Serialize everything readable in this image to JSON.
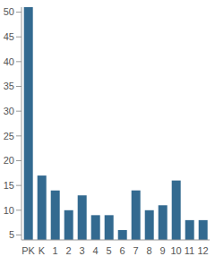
{
  "chart_data": {
    "type": "bar",
    "categories": [
      "PK",
      "K",
      "1",
      "2",
      "3",
      "4",
      "5",
      "6",
      "7",
      "8",
      "9",
      "10",
      "11",
      "12"
    ],
    "values": [
      51,
      17,
      14,
      10,
      13,
      9,
      9,
      6,
      14,
      10,
      11,
      16,
      8,
      8
    ],
    "color": "#336a90",
    "ylim": [
      4,
      51
    ],
    "yticks": [
      5,
      10,
      15,
      20,
      25,
      30,
      35,
      40,
      45,
      50
    ],
    "grid": false
  }
}
